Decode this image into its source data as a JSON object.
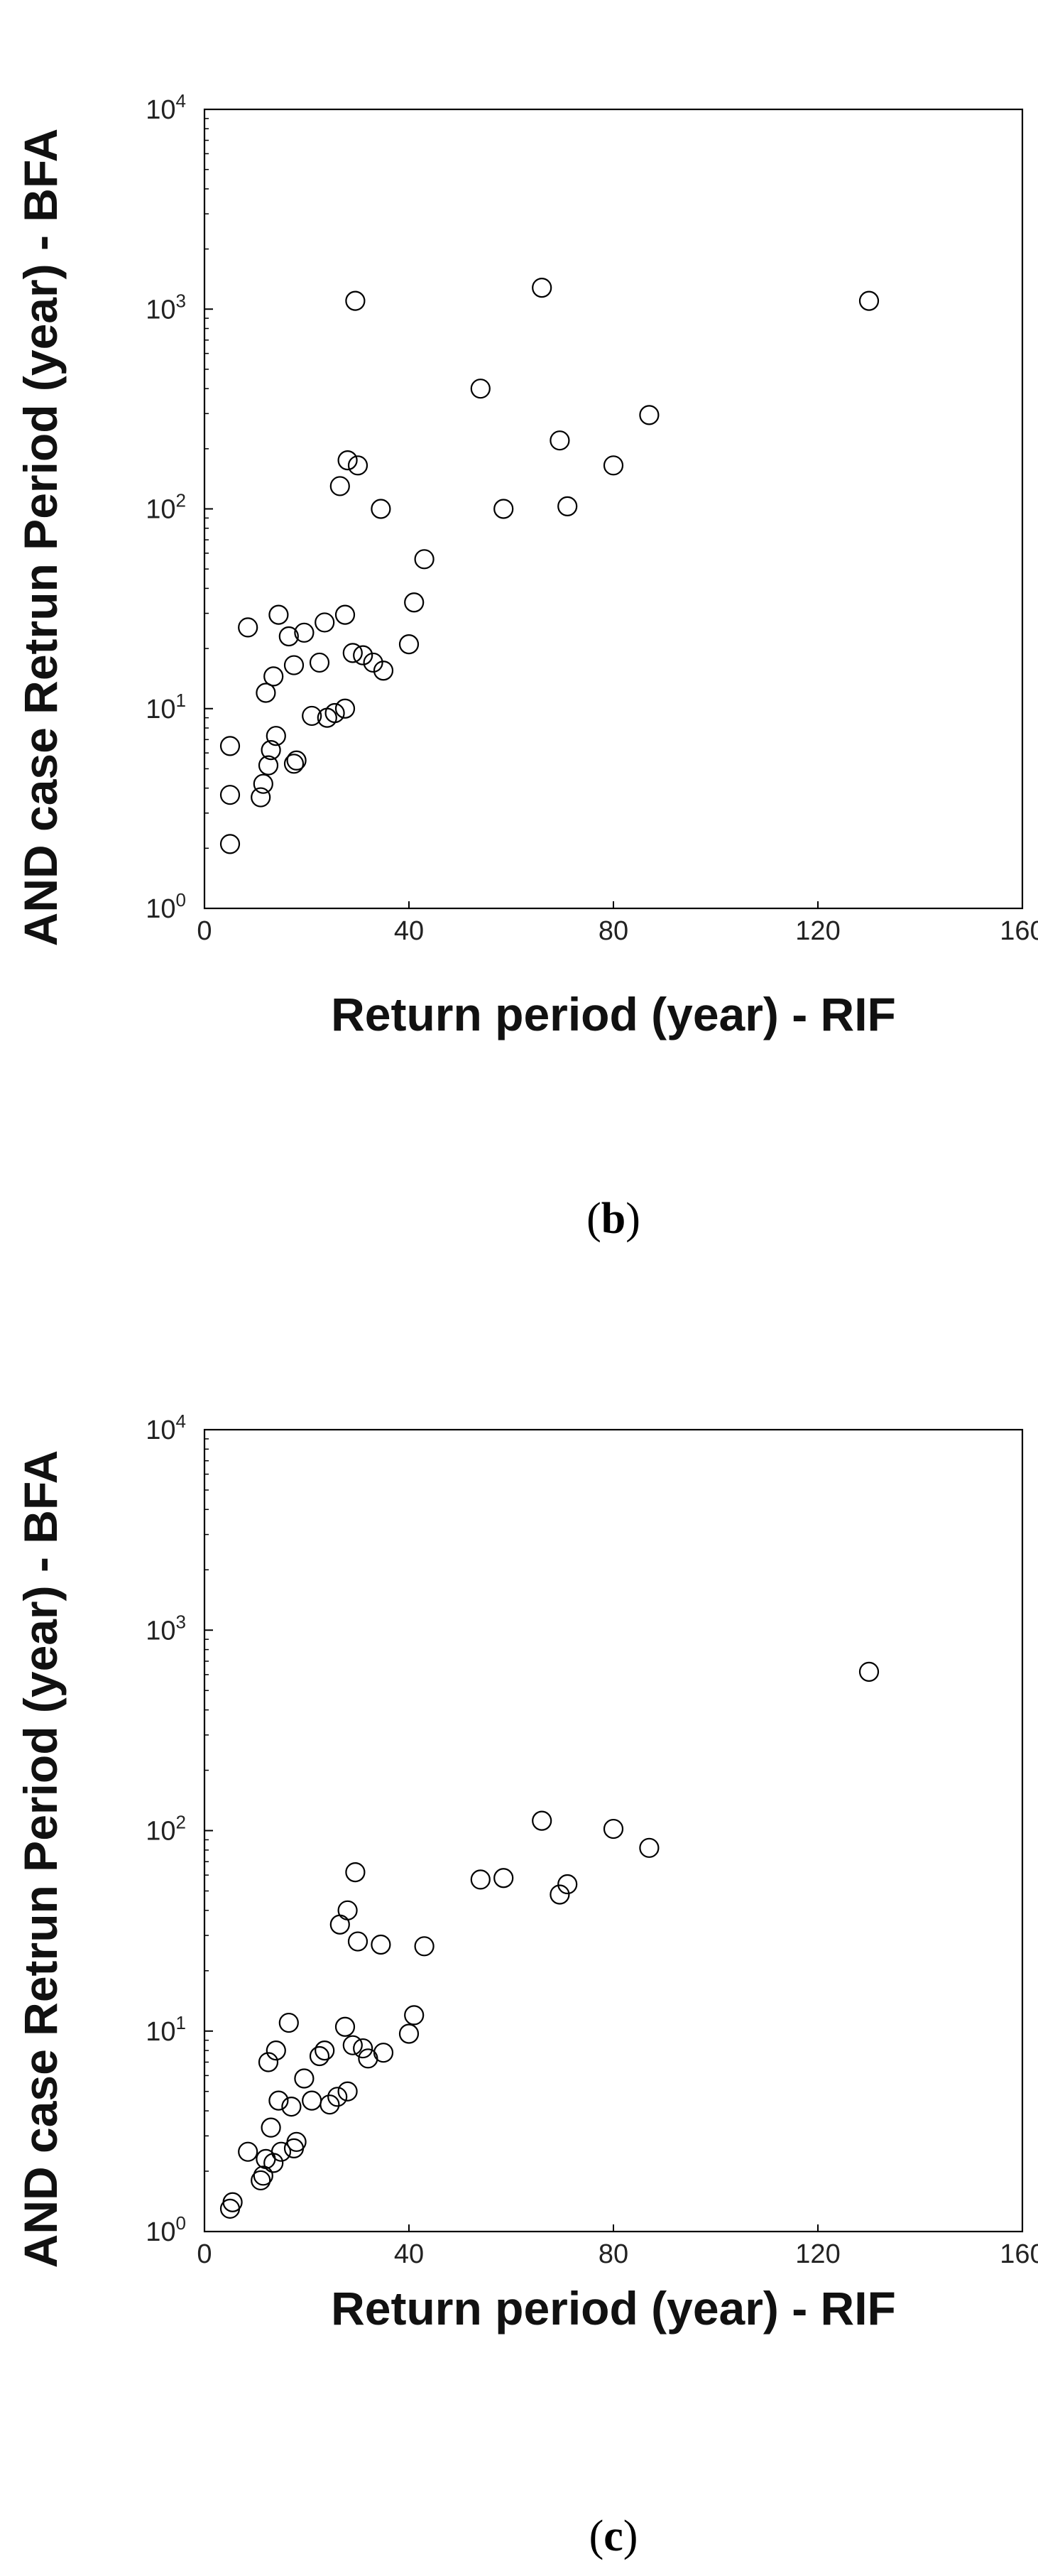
{
  "chart_data": [
    {
      "type": "scatter",
      "panel_label": "b",
      "xlabel": "Return period (year) - RIF",
      "ylabel": "AND case Retrun Period (year) - BFA",
      "xlim": [
        0,
        160
      ],
      "ylim": [
        1,
        10000
      ],
      "y_scale": "log",
      "x_ticks": [
        "0",
        "40",
        "80",
        "120",
        "160"
      ],
      "y_ticks": [
        {
          "base": "10",
          "exp": "0"
        },
        {
          "base": "10",
          "exp": "1"
        },
        {
          "base": "10",
          "exp": "2"
        },
        {
          "base": "10",
          "exp": "3"
        },
        {
          "base": "10",
          "exp": "4"
        }
      ],
      "grid": false,
      "marker": "open-circle",
      "points": [
        {
          "x": 5,
          "y": 2.1
        },
        {
          "x": 5,
          "y": 3.7
        },
        {
          "x": 5,
          "y": 6.5
        },
        {
          "x": 8.5,
          "y": 25.5
        },
        {
          "x": 11,
          "y": 3.6
        },
        {
          "x": 11.5,
          "y": 4.2
        },
        {
          "x": 12,
          "y": 12
        },
        {
          "x": 12.5,
          "y": 5.2
        },
        {
          "x": 13,
          "y": 6.2
        },
        {
          "x": 13.5,
          "y": 14.5
        },
        {
          "x": 14,
          "y": 7.3
        },
        {
          "x": 14.5,
          "y": 29.5
        },
        {
          "x": 16.5,
          "y": 23
        },
        {
          "x": 17.5,
          "y": 16.5
        },
        {
          "x": 17.5,
          "y": 5.3
        },
        {
          "x": 18,
          "y": 5.5
        },
        {
          "x": 19.5,
          "y": 24
        },
        {
          "x": 21,
          "y": 9.2
        },
        {
          "x": 22.5,
          "y": 17
        },
        {
          "x": 23.5,
          "y": 27
        },
        {
          "x": 24,
          "y": 9
        },
        {
          "x": 25.5,
          "y": 9.5
        },
        {
          "x": 26.5,
          "y": 130
        },
        {
          "x": 27.5,
          "y": 10
        },
        {
          "x": 27.5,
          "y": 29.5
        },
        {
          "x": 28,
          "y": 175
        },
        {
          "x": 29,
          "y": 19
        },
        {
          "x": 29.5,
          "y": 1100
        },
        {
          "x": 30,
          "y": 165
        },
        {
          "x": 31,
          "y": 18.5
        },
        {
          "x": 33,
          "y": 17
        },
        {
          "x": 34.5,
          "y": 100
        },
        {
          "x": 35,
          "y": 15.5
        },
        {
          "x": 40,
          "y": 21
        },
        {
          "x": 41,
          "y": 34
        },
        {
          "x": 43,
          "y": 56
        },
        {
          "x": 54,
          "y": 400
        },
        {
          "x": 58.5,
          "y": 100
        },
        {
          "x": 66,
          "y": 1280
        },
        {
          "x": 69.5,
          "y": 220
        },
        {
          "x": 71,
          "y": 103
        },
        {
          "x": 80,
          "y": 165
        },
        {
          "x": 87,
          "y": 295
        },
        {
          "x": 130,
          "y": 1100
        }
      ]
    },
    {
      "type": "scatter",
      "panel_label": "c",
      "xlabel": "Return period (year) - RIF",
      "ylabel": "AND case Retrun Period (year) - BFA",
      "xlim": [
        0,
        160
      ],
      "ylim": [
        1,
        10000
      ],
      "y_scale": "log",
      "x_ticks": [
        "0",
        "40",
        "80",
        "120",
        "160"
      ],
      "y_ticks": [
        {
          "base": "10",
          "exp": "0"
        },
        {
          "base": "10",
          "exp": "1"
        },
        {
          "base": "10",
          "exp": "2"
        },
        {
          "base": "10",
          "exp": "3"
        },
        {
          "base": "10",
          "exp": "4"
        }
      ],
      "grid": false,
      "marker": "open-circle",
      "points": [
        {
          "x": 5,
          "y": 1.3
        },
        {
          "x": 5.5,
          "y": 1.4
        },
        {
          "x": 8.5,
          "y": 2.5
        },
        {
          "x": 11,
          "y": 1.8
        },
        {
          "x": 11.5,
          "y": 1.9
        },
        {
          "x": 12,
          "y": 2.3
        },
        {
          "x": 12.5,
          "y": 7
        },
        {
          "x": 13,
          "y": 3.3
        },
        {
          "x": 13.5,
          "y": 2.2
        },
        {
          "x": 14,
          "y": 8
        },
        {
          "x": 14.5,
          "y": 4.5
        },
        {
          "x": 15,
          "y": 2.5
        },
        {
          "x": 16.5,
          "y": 11
        },
        {
          "x": 17,
          "y": 4.2
        },
        {
          "x": 17.5,
          "y": 2.6
        },
        {
          "x": 18,
          "y": 2.8
        },
        {
          "x": 19.5,
          "y": 5.8
        },
        {
          "x": 21,
          "y": 4.5
        },
        {
          "x": 22.5,
          "y": 7.5
        },
        {
          "x": 23.5,
          "y": 8
        },
        {
          "x": 24.5,
          "y": 4.3
        },
        {
          "x": 26,
          "y": 4.7
        },
        {
          "x": 26.5,
          "y": 34
        },
        {
          "x": 27.5,
          "y": 10.5
        },
        {
          "x": 28,
          "y": 5
        },
        {
          "x": 28,
          "y": 40
        },
        {
          "x": 29,
          "y": 8.5
        },
        {
          "x": 29.5,
          "y": 62
        },
        {
          "x": 30,
          "y": 28
        },
        {
          "x": 31,
          "y": 8.2
        },
        {
          "x": 32,
          "y": 7.3
        },
        {
          "x": 34.5,
          "y": 27
        },
        {
          "x": 35,
          "y": 7.8
        },
        {
          "x": 40,
          "y": 9.7
        },
        {
          "x": 41,
          "y": 12
        },
        {
          "x": 43,
          "y": 26.5
        },
        {
          "x": 54,
          "y": 57
        },
        {
          "x": 58.5,
          "y": 58
        },
        {
          "x": 66,
          "y": 112
        },
        {
          "x": 69.5,
          "y": 48
        },
        {
          "x": 71,
          "y": 54
        },
        {
          "x": 80,
          "y": 102
        },
        {
          "x": 87,
          "y": 82
        },
        {
          "x": 130,
          "y": 620
        }
      ]
    }
  ]
}
